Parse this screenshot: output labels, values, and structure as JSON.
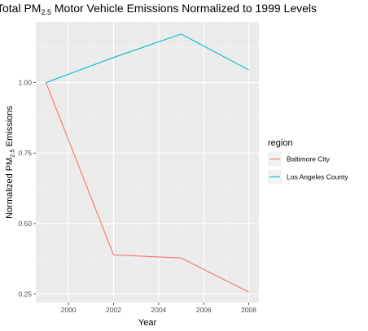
{
  "chart_data": {
    "type": "line",
    "title": {
      "prefix": "Total PM",
      "subscript": "2.5",
      "suffix": " Motor Vehicle Emissions Normalized to 1999 Levels"
    },
    "xlabel": "Year",
    "ylabel": {
      "prefix": "Normalized PM",
      "subscript": "2.5",
      "suffix": " Emissions"
    },
    "xlim": [
      1998.55,
      2008.45
    ],
    "ylim": [
      0.22,
      1.215
    ],
    "x_ticks": [
      2000,
      2002,
      2004,
      2006,
      2008
    ],
    "x_tick_labels": [
      "2000",
      "2002",
      "2004",
      "2006",
      "2008"
    ],
    "y_ticks": [
      0.25,
      0.5,
      0.75,
      1.0
    ],
    "y_tick_labels": [
      "0.25",
      "0.50",
      "0.75",
      "1.00"
    ],
    "grid": true,
    "legend": {
      "title": "region",
      "position": "right"
    },
    "series": [
      {
        "name": "Baltimore City",
        "color": "#f8766d",
        "x": [
          1999,
          2002,
          2005,
          2008
        ],
        "y": [
          1.0,
          0.389,
          0.378,
          0.257
        ]
      },
      {
        "name": "Los Angeles County",
        "color": "#00bfc4",
        "x": [
          1999,
          2002,
          2005,
          2008
        ],
        "y": [
          1.0,
          1.089,
          1.172,
          1.045
        ]
      }
    ]
  }
}
